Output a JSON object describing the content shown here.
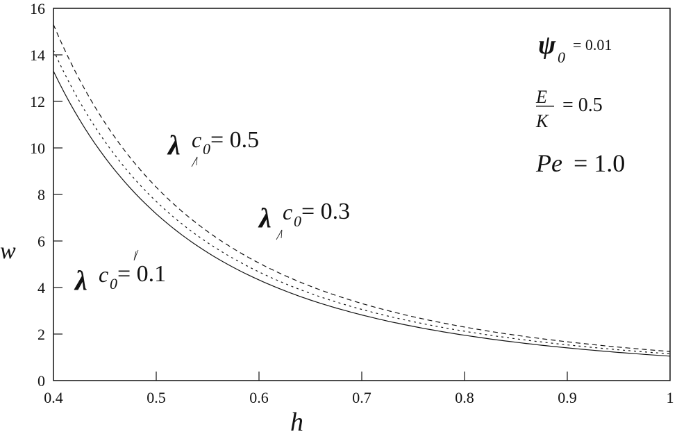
{
  "chart_data": {
    "type": "line",
    "title": "",
    "xlabel": "h",
    "ylabel": "w",
    "xlim": [
      0.4,
      1.0
    ],
    "ylim": [
      0,
      16
    ],
    "grid": false,
    "x_ticks": [
      "0.4",
      "0.5",
      "0.6",
      "0.7",
      "0.8",
      "0.9",
      "1"
    ],
    "y_ticks": [
      "0",
      "2",
      "4",
      "6",
      "8",
      "10",
      "12",
      "14",
      "16"
    ],
    "x": [
      0.4,
      0.45,
      0.5,
      0.55,
      0.6,
      0.65,
      0.7,
      0.75,
      0.8,
      0.85,
      0.9,
      0.95,
      1.0
    ],
    "series": [
      {
        "name": "λc0 = 0.1",
        "style": "solid",
        "values": [
          13.3,
          10.4,
          8.3,
          6.8,
          5.6,
          4.7,
          3.95,
          3.35,
          2.85,
          2.45,
          2.1,
          1.8,
          1.05
        ]
      },
      {
        "name": "λc0 = 0.3",
        "style": "dotted",
        "values": [
          14.2,
          11.1,
          8.9,
          7.3,
          6.0,
          5.0,
          4.25,
          3.6,
          3.05,
          2.6,
          2.25,
          1.95,
          1.15
        ]
      },
      {
        "name": "λc0 = 0.5",
        "style": "dashed",
        "values": [
          15.3,
          12.0,
          9.6,
          7.85,
          6.45,
          5.4,
          4.55,
          3.85,
          3.3,
          2.8,
          2.4,
          2.05,
          1.25
        ]
      }
    ],
    "annotations": {
      "psi0": "= 0.01",
      "ratio_num": "E",
      "ratio_den": "K",
      "ratio_val": "= 0.5",
      "pe_label": "Pe",
      "pe_val": "= 1.0"
    },
    "curve_labels": [
      {
        "lambda": "λ",
        "c": "c",
        "sub": "0",
        "val": "= 0.5"
      },
      {
        "lambda": "λ",
        "c": "c",
        "sub": "0",
        "val": "= 0.3"
      },
      {
        "lambda": "λ",
        "c": "c",
        "sub": "0",
        "val": "= 0.1"
      }
    ],
    "legend_position": "none"
  }
}
